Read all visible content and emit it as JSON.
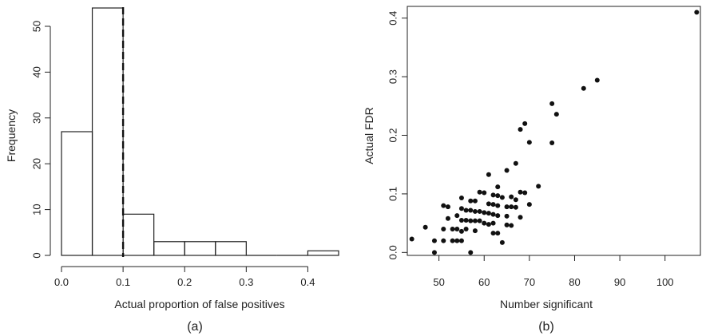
{
  "chart_data": [
    {
      "type": "bar",
      "panel_label": "(a)",
      "xlabel": "Actual proportion of false positives",
      "ylabel": "Frequency",
      "xlim": [
        0,
        0.45
      ],
      "ylim": [
        0,
        54
      ],
      "xticks": [
        0.0,
        0.1,
        0.2,
        0.3,
        0.4
      ],
      "xtick_labels": [
        "0.0",
        "0.1",
        "0.2",
        "0.3",
        "0.4"
      ],
      "yticks": [
        0,
        10,
        20,
        30,
        40,
        50
      ],
      "ytick_labels": [
        "0",
        "10",
        "20",
        "30",
        "40",
        "50"
      ],
      "bins": [
        {
          "x0": 0.0,
          "x1": 0.05,
          "count": 27
        },
        {
          "x0": 0.05,
          "x1": 0.1,
          "count": 54
        },
        {
          "x0": 0.1,
          "x1": 0.15,
          "count": 9
        },
        {
          "x0": 0.15,
          "x1": 0.2,
          "count": 3
        },
        {
          "x0": 0.2,
          "x1": 0.25,
          "count": 3
        },
        {
          "x0": 0.25,
          "x1": 0.3,
          "count": 3
        },
        {
          "x0": 0.3,
          "x1": 0.35,
          "count": 0
        },
        {
          "x0": 0.35,
          "x1": 0.4,
          "count": 0
        },
        {
          "x0": 0.4,
          "x1": 0.45,
          "count": 1
        }
      ],
      "reference_line": {
        "x": 0.1,
        "style": "dashed"
      },
      "grid": false
    },
    {
      "type": "scatter",
      "panel_label": "(b)",
      "xlabel": "Number significant",
      "ylabel": "Actual FDR",
      "xlim": [
        43,
        108
      ],
      "ylim": [
        -0.005,
        0.42
      ],
      "xticks": [
        50,
        60,
        70,
        80,
        90,
        100
      ],
      "xtick_labels": [
        "50",
        "60",
        "70",
        "80",
        "90",
        "100"
      ],
      "yticks": [
        0.0,
        0.1,
        0.2,
        0.3,
        0.4
      ],
      "ytick_labels": [
        "0.0",
        "0.1",
        "0.2",
        "0.3",
        "0.4"
      ],
      "points": [
        [
          44,
          0.023
        ],
        [
          47,
          0.043
        ],
        [
          49,
          0.0
        ],
        [
          49,
          0.02
        ],
        [
          51,
          0.08
        ],
        [
          51,
          0.04
        ],
        [
          51,
          0.02
        ],
        [
          52,
          0.078
        ],
        [
          52,
          0.058
        ],
        [
          53,
          0.04
        ],
        [
          53,
          0.02
        ],
        [
          54,
          0.063
        ],
        [
          54,
          0.04
        ],
        [
          54,
          0.02
        ],
        [
          55,
          0.093
        ],
        [
          55,
          0.075
        ],
        [
          55,
          0.055
        ],
        [
          55,
          0.036
        ],
        [
          55,
          0.02
        ],
        [
          56,
          0.072
        ],
        [
          56,
          0.055
        ],
        [
          56,
          0.04
        ],
        [
          57,
          0.088
        ],
        [
          57,
          0.072
        ],
        [
          57,
          0.054
        ],
        [
          57,
          0.0
        ],
        [
          58,
          0.088
        ],
        [
          58,
          0.07
        ],
        [
          58,
          0.054
        ],
        [
          58,
          0.037
        ],
        [
          59,
          0.103
        ],
        [
          59,
          0.07
        ],
        [
          59,
          0.054
        ],
        [
          60,
          0.102
        ],
        [
          60,
          0.068
        ],
        [
          60,
          0.05
        ],
        [
          61,
          0.133
        ],
        [
          61,
          0.083
        ],
        [
          61,
          0.067
        ],
        [
          61,
          0.048
        ],
        [
          62,
          0.098
        ],
        [
          62,
          0.082
        ],
        [
          62,
          0.065
        ],
        [
          62,
          0.05
        ],
        [
          62,
          0.033
        ],
        [
          63,
          0.112
        ],
        [
          63,
          0.097
        ],
        [
          63,
          0.08
        ],
        [
          63,
          0.063
        ],
        [
          63,
          0.033
        ],
        [
          64,
          0.094
        ],
        [
          64,
          0.017
        ],
        [
          65,
          0.14
        ],
        [
          65,
          0.078
        ],
        [
          65,
          0.062
        ],
        [
          65,
          0.047
        ],
        [
          66,
          0.095
        ],
        [
          66,
          0.078
        ],
        [
          66,
          0.046
        ],
        [
          67,
          0.152
        ],
        [
          67,
          0.09
        ],
        [
          67,
          0.077
        ],
        [
          68,
          0.21
        ],
        [
          68,
          0.103
        ],
        [
          68,
          0.06
        ],
        [
          69,
          0.22
        ],
        [
          69,
          0.102
        ],
        [
          70,
          0.188
        ],
        [
          70,
          0.082
        ],
        [
          72,
          0.113
        ],
        [
          75,
          0.254
        ],
        [
          75,
          0.187
        ],
        [
          76,
          0.236
        ],
        [
          82,
          0.28
        ],
        [
          85,
          0.294
        ],
        [
          107,
          0.41
        ]
      ],
      "grid": false
    }
  ]
}
